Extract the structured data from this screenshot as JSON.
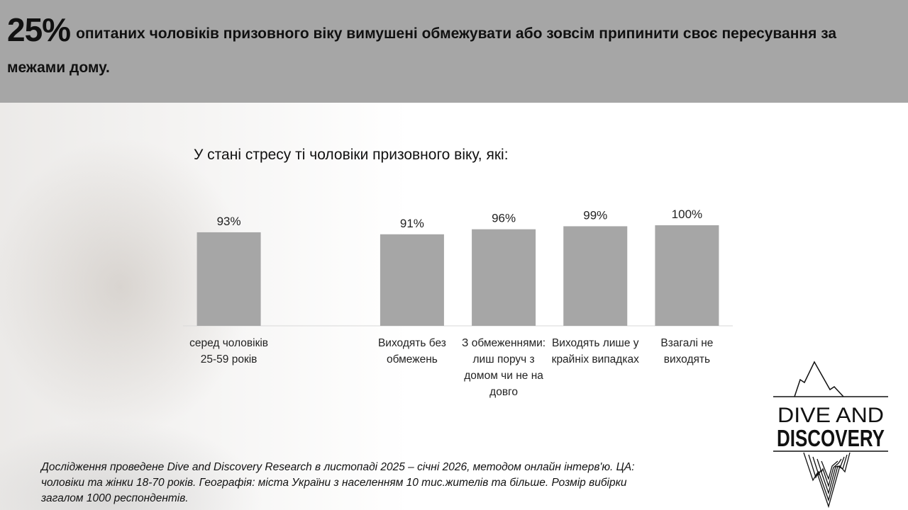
{
  "header": {
    "big": "25%",
    "text": "опитаних чоловіків призовного віку вимушені обмежувати або зовсім припинити своє пересування за межами дому."
  },
  "chart_data": {
    "type": "bar",
    "title": "У стані стресу ті чоловіки призовного віку, які:",
    "categories": [
      "серед чоловіків 25-59 років",
      "",
      "Виходять без обмежень",
      "З обмеженнями: лиш поруч з домом чи не на довго",
      "Виходять лише у крайніх випадках",
      "Взагалі не виходять"
    ],
    "values": [
      93,
      null,
      91,
      96,
      99,
      100
    ],
    "labels": [
      "93%",
      "",
      "91%",
      "96%",
      "99%",
      "100%"
    ],
    "ylim": [
      0,
      100
    ],
    "bar_color": "#a6a6a6",
    "grid": false
  },
  "note": "Дослідження проведене Dive and Discovery Research в листопаді 2025 – січні 2026, методом онлайн інтерв'ю. ЦА: чоловіки та жінки 18-70 років. Географія: міста України з населенням 10 тис.жителів та більше. Розмір вибірки загалом 1000 респондентів.",
  "logo": {
    "line1": "DIVE AND",
    "line2": "DISCOVERY"
  }
}
